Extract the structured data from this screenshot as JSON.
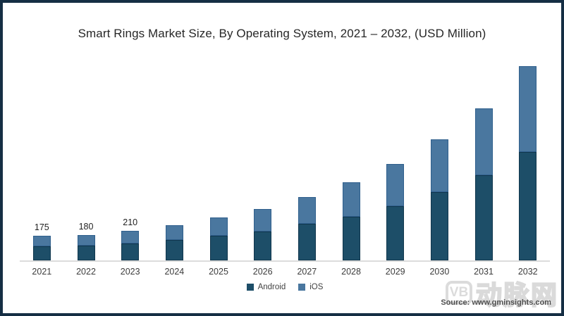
{
  "chart_data": {
    "type": "bar",
    "stacked": true,
    "title": "Smart Rings Market Size, By Operating System, 2021 – 2032, (USD Million)",
    "unit": "USD Million",
    "categories": [
      "2021",
      "2022",
      "2023",
      "2024",
      "2025",
      "2026",
      "2027",
      "2028",
      "2029",
      "2030",
      "2031",
      "2032"
    ],
    "series": [
      {
        "name": "Android",
        "color": "#1d4e68",
        "border": "#10364d",
        "values": [
          100,
          105,
          120,
          145,
          175,
          205,
          260,
          310,
          385,
          485,
          605,
          770
        ]
      },
      {
        "name": "iOS",
        "color": "#4a779f",
        "border": "#2f5f8c",
        "values": [
          75,
          75,
          90,
          105,
          130,
          160,
          190,
          245,
          300,
          375,
          475,
          610
        ]
      }
    ],
    "totals": [
      175,
      180,
      210,
      250,
      305,
      365,
      450,
      555,
      685,
      860,
      1080,
      1380
    ],
    "value_labels": [
      "175",
      "180",
      "210",
      "",
      "",
      "",
      "",
      "",
      "",
      "",
      "",
      ""
    ],
    "legend_position": "bottom",
    "grid": "off",
    "axis_line_color": "#dcdcdc"
  },
  "legend": {
    "items": [
      {
        "label": "Android",
        "color": "#1d4e68"
      },
      {
        "label": "iOS",
        "color": "#4a779f"
      }
    ]
  },
  "footer": {
    "source_label": "Source: www.gminsights.com"
  },
  "watermark": {
    "logo_text": "VB",
    "cjk_text": "动脉网"
  },
  "frame": {
    "border_color": "#152e44",
    "background": "#ffffff"
  }
}
